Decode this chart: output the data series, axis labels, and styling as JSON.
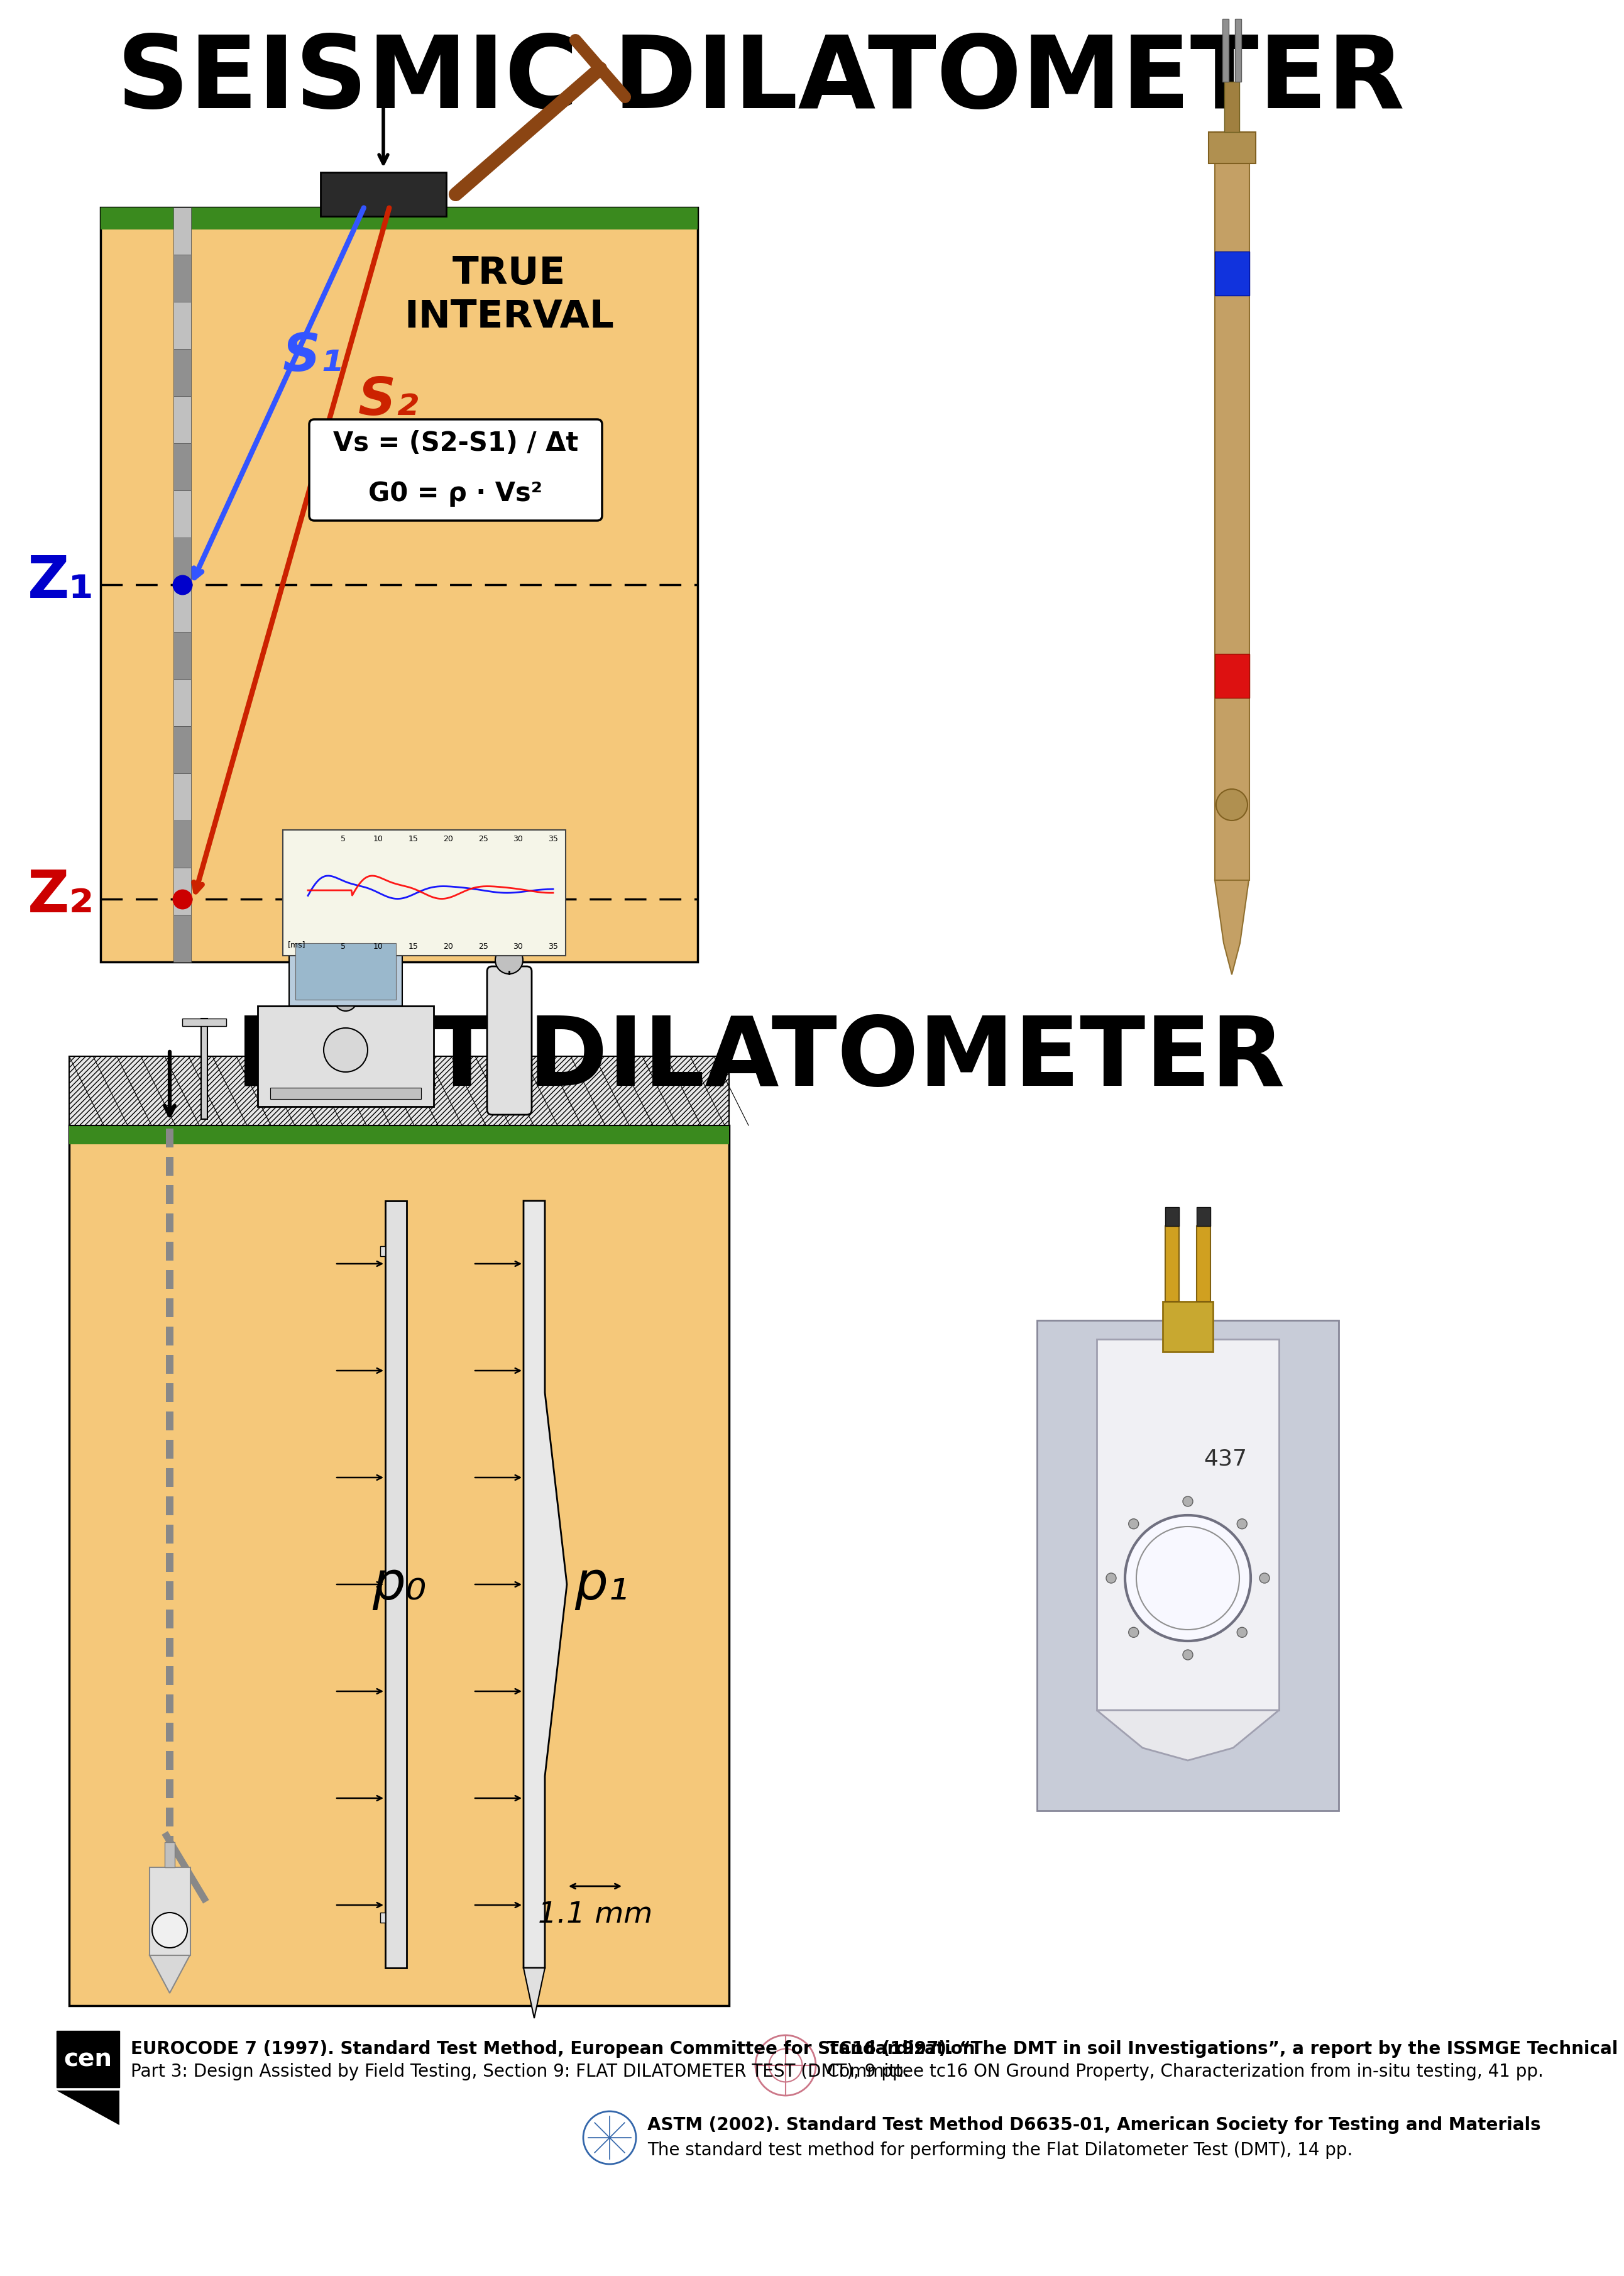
{
  "title1": "SEISMIC DILATOMETER",
  "title2": "FLAT DILATOMETER",
  "bg_color": "#ffffff",
  "title_fontsize": 115,
  "title2_fontsize": 110,
  "seismic_diagram": {
    "ground_color": "#f5c87a",
    "grass_color": "#3a8a1e",
    "rod_color": "#808080",
    "formula_text": [
      "Vs = (S2-S1) / Δt",
      "G0 = ρ · Vs²"
    ],
    "z1_color": "#0000cc",
    "z2_color": "#cc0000",
    "s1_color": "#3355ff",
    "s2_color": "#cc2200",
    "true_interval_text": "TRUE\nINTERVAL",
    "z1_label": "Z₁",
    "z2_label": "Z₂",
    "s1_label": "S₁",
    "s2_label": "S₂"
  },
  "flat_diagram": {
    "ground_color": "#f5c87a",
    "grass_color": "#3a8a1e",
    "p0_label": "p₀",
    "p1_label": "p₁",
    "mm_label": "1.1 mm"
  },
  "footer": {
    "cen_text1": "EUROCODE 7 (1997). Standard Test Method, European Committee for Standardization",
    "cen_text2": "Part 3: Design Assisted by Field Testing, Section 9: FLAT DILATOMETER TEST (DMT), 9 pp.",
    "tc16_text1": "TC16 (1997). “The DMT in soil Investigations”, a report by the ISSMGE Technical",
    "tc16_text2": "Committee tc16 ON Ground Property, Characterization from in-situ testing, 41 pp.",
    "astm_text1": "ASTM (2002). Standard Test Method D6635-01, American Society for Testing and Materials",
    "astm_text2": "The standard test method for performing the Flat Dilatometer Test (DMT), 14 pp.",
    "fontsize": 20
  }
}
